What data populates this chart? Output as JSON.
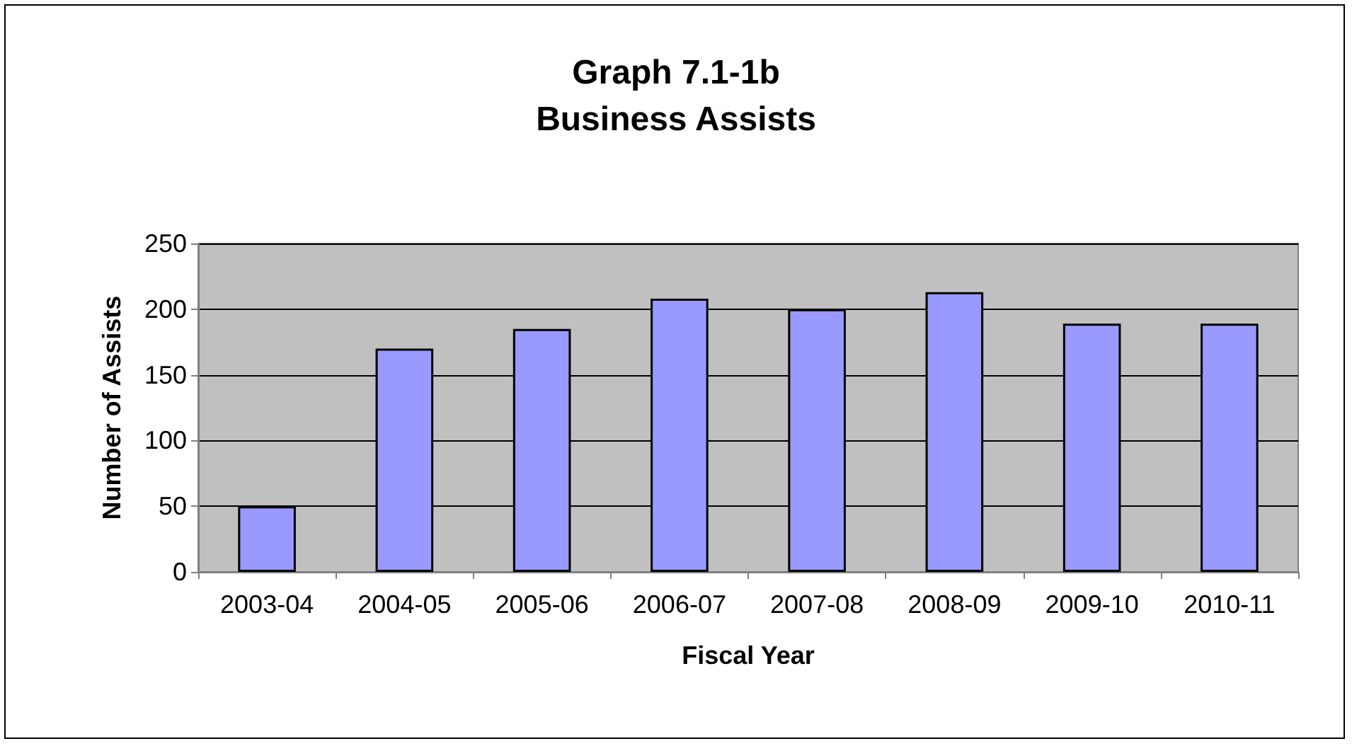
{
  "chart_data": {
    "type": "bar",
    "title": "Graph 7.1-1b\nBusiness Assists",
    "xlabel": "Fiscal Year",
    "ylabel": "Number of Assists",
    "categories": [
      "2003-04",
      "2004-05",
      "2005-06",
      "2006-07",
      "2007-08",
      "2008-09",
      "2009-10",
      "2010-11"
    ],
    "values": [
      50,
      170,
      185,
      208,
      200,
      213,
      189,
      189
    ],
    "color": "#9999ff",
    "ylim": [
      0,
      250
    ],
    "yticks": [
      0,
      50,
      100,
      150,
      200,
      250
    ],
    "grid": "y"
  }
}
